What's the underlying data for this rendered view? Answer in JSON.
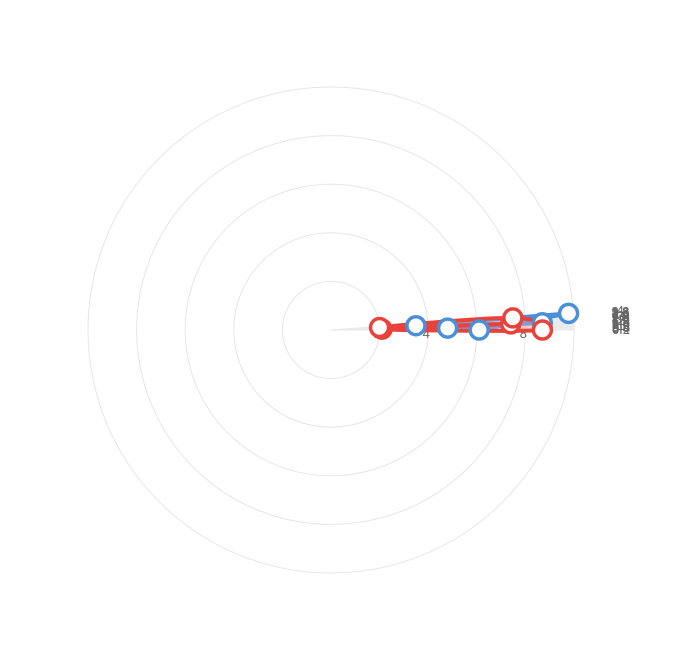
{
  "chart_data": {
    "type": "polar-area-line",
    "angular_axis": {
      "unit": "degrees",
      "range": [
        0,
        4.2
      ],
      "direction": "counterclockwise",
      "tick_labels": [
        "0.2",
        "0.4",
        "0.6",
        "0.8",
        "1",
        "1.2",
        "1.4",
        "1.6",
        "1.8",
        "2",
        "2.2",
        "2.4",
        "2.6",
        "2.8",
        "3",
        "3.2",
        "3.4",
        "3.6",
        "3.8",
        "4"
      ],
      "tick_values": [
        0.2,
        0.4,
        0.6,
        0.8,
        1,
        1.2,
        1.4,
        1.6,
        1.8,
        2,
        2.2,
        2.4,
        2.6,
        2.8,
        3,
        3.2,
        3.4,
        3.6,
        3.8,
        4
      ]
    },
    "radial_axis": {
      "range": [
        0,
        10
      ],
      "tick_values": [
        2,
        4,
        6,
        8
      ],
      "tick_labels": [
        "2",
        "4",
        "6",
        "8"
      ]
    },
    "series": [
      {
        "color": "#4a90d9",
        "fill": "#8ccbf0",
        "smooth": false,
        "points": [
          {
            "theta": 0.0,
            "r": 6.1
          },
          {
            "theta": 0.95,
            "r": 4.8
          },
          {
            "theta": 1.95,
            "r": 8.7
          },
          {
            "theta": 2.9,
            "r": 3.5
          },
          {
            "theta": 4.0,
            "r": 9.8
          }
        ]
      },
      {
        "color": "#e8423a",
        "fill": "#f7a8a8",
        "smooth": true,
        "points": [
          {
            "theta": 0.0,
            "r": 8.7
          },
          {
            "theta": 0.95,
            "r": 2.1
          },
          {
            "theta": 1.95,
            "r": 7.4
          },
          {
            "theta": 2.9,
            "r": 2.0
          },
          {
            "theta": 3.8,
            "r": 7.5
          }
        ]
      }
    ],
    "grid": true,
    "legend": "none"
  }
}
